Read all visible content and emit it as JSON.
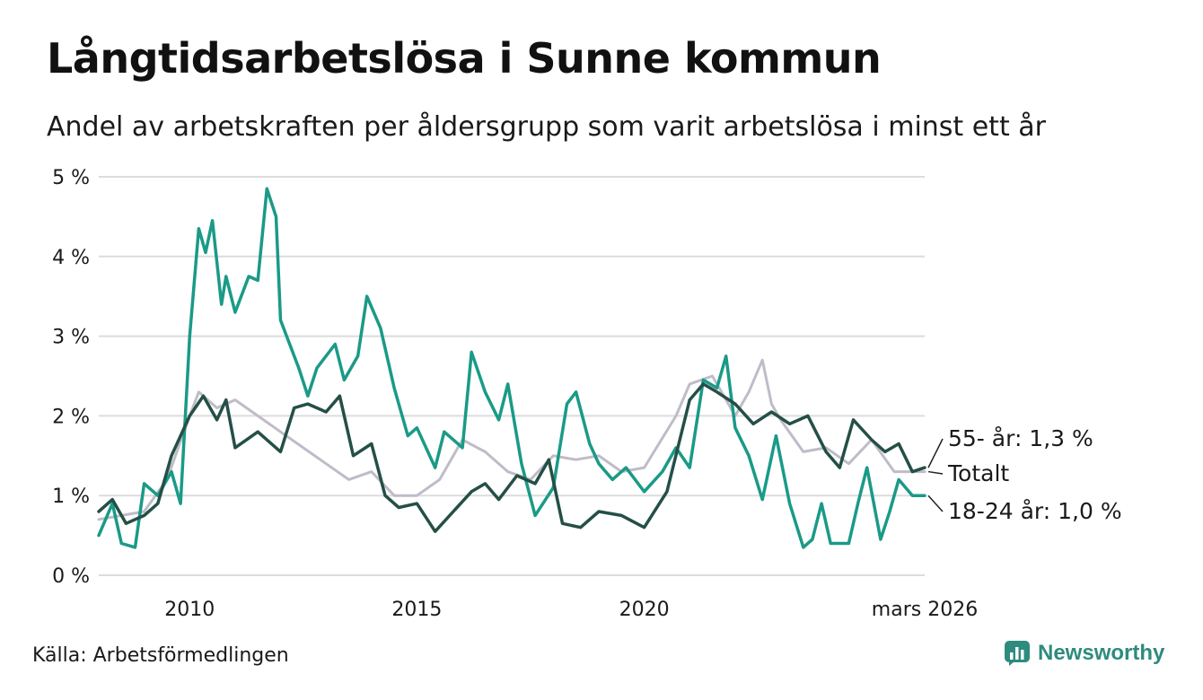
{
  "title": "Långtidsarbetslösa i Sunne kommun",
  "subtitle": "Andel av arbetskraften per åldersgrupp som varit arbetslösa i minst ett år",
  "source": "Källa: Arbetsförmedlingen",
  "brand": "Newsworthy",
  "colors": {
    "age55": "#244f47",
    "total": "#bfbcc8",
    "youth": "#1a9a87",
    "grid": "#dcdcdc",
    "brand": "#2e8b7e"
  },
  "chart_data": {
    "type": "line",
    "title": "Långtidsarbetslösa i Sunne kommun",
    "xlabel": "",
    "ylabel": "",
    "ylim": [
      0,
      5
    ],
    "xlim": [
      2008.0,
      2026.17
    ],
    "y_ticks": [
      {
        "value": 0,
        "label": "0 %"
      },
      {
        "value": 1,
        "label": "1 %"
      },
      {
        "value": 2,
        "label": "2 %"
      },
      {
        "value": 3,
        "label": "3 %"
      },
      {
        "value": 4,
        "label": "4 %"
      },
      {
        "value": 5,
        "label": "5 %"
      }
    ],
    "x_ticks": [
      {
        "value": 2010,
        "label": "2010"
      },
      {
        "value": 2015,
        "label": "2015"
      },
      {
        "value": 2020,
        "label": "2020"
      },
      {
        "value": 2026.17,
        "label": "mars 2026"
      }
    ],
    "series": [
      {
        "name": "Totalt",
        "end_label": "Totalt",
        "color": "#bfbcc8",
        "points": [
          [
            2008.0,
            0.7
          ],
          [
            2008.5,
            0.75
          ],
          [
            2009.0,
            0.8
          ],
          [
            2009.5,
            1.2
          ],
          [
            2010.0,
            2.0
          ],
          [
            2010.2,
            2.3
          ],
          [
            2010.6,
            2.1
          ],
          [
            2011.0,
            2.2
          ],
          [
            2011.5,
            2.0
          ],
          [
            2012.0,
            1.8
          ],
          [
            2012.5,
            1.6
          ],
          [
            2013.0,
            1.4
          ],
          [
            2013.5,
            1.2
          ],
          [
            2014.0,
            1.3
          ],
          [
            2014.5,
            1.0
          ],
          [
            2015.0,
            1.0
          ],
          [
            2015.5,
            1.2
          ],
          [
            2016.0,
            1.7
          ],
          [
            2016.5,
            1.55
          ],
          [
            2017.0,
            1.3
          ],
          [
            2017.5,
            1.2
          ],
          [
            2018.0,
            1.5
          ],
          [
            2018.5,
            1.45
          ],
          [
            2019.0,
            1.5
          ],
          [
            2019.5,
            1.3
          ],
          [
            2020.0,
            1.35
          ],
          [
            2020.7,
            2.0
          ],
          [
            2021.0,
            2.4
          ],
          [
            2021.5,
            2.5
          ],
          [
            2022.0,
            2.0
          ],
          [
            2022.3,
            2.3
          ],
          [
            2022.6,
            2.7
          ],
          [
            2022.8,
            2.15
          ],
          [
            2023.0,
            1.95
          ],
          [
            2023.5,
            1.55
          ],
          [
            2024.0,
            1.6
          ],
          [
            2024.5,
            1.4
          ],
          [
            2025.0,
            1.7
          ],
          [
            2025.5,
            1.3
          ],
          [
            2025.9,
            1.3
          ],
          [
            2026.17,
            1.3
          ]
        ]
      },
      {
        "name": "55- år",
        "end_label": "55- år: 1,3 %",
        "color": "#244f47",
        "points": [
          [
            2008.0,
            0.8
          ],
          [
            2008.3,
            0.95
          ],
          [
            2008.6,
            0.65
          ],
          [
            2009.0,
            0.75
          ],
          [
            2009.3,
            0.9
          ],
          [
            2009.6,
            1.5
          ],
          [
            2010.0,
            2.0
          ],
          [
            2010.3,
            2.25
          ],
          [
            2010.6,
            1.95
          ],
          [
            2010.8,
            2.2
          ],
          [
            2011.0,
            1.6
          ],
          [
            2011.5,
            1.8
          ],
          [
            2012.0,
            1.55
          ],
          [
            2012.3,
            2.1
          ],
          [
            2012.6,
            2.15
          ],
          [
            2013.0,
            2.05
          ],
          [
            2013.3,
            2.25
          ],
          [
            2013.6,
            1.5
          ],
          [
            2014.0,
            1.65
          ],
          [
            2014.3,
            1.0
          ],
          [
            2014.6,
            0.85
          ],
          [
            2015.0,
            0.9
          ],
          [
            2015.4,
            0.55
          ],
          [
            2015.8,
            0.8
          ],
          [
            2016.2,
            1.05
          ],
          [
            2016.5,
            1.15
          ],
          [
            2016.8,
            0.95
          ],
          [
            2017.2,
            1.25
          ],
          [
            2017.6,
            1.15
          ],
          [
            2017.9,
            1.45
          ],
          [
            2018.2,
            0.65
          ],
          [
            2018.6,
            0.6
          ],
          [
            2019.0,
            0.8
          ],
          [
            2019.5,
            0.75
          ],
          [
            2020.0,
            0.6
          ],
          [
            2020.5,
            1.05
          ],
          [
            2021.0,
            2.2
          ],
          [
            2021.3,
            2.4
          ],
          [
            2021.6,
            2.3
          ],
          [
            2022.0,
            2.15
          ],
          [
            2022.4,
            1.9
          ],
          [
            2022.8,
            2.05
          ],
          [
            2023.2,
            1.9
          ],
          [
            2023.6,
            2.0
          ],
          [
            2024.0,
            1.55
          ],
          [
            2024.3,
            1.35
          ],
          [
            2024.6,
            1.95
          ],
          [
            2025.0,
            1.7
          ],
          [
            2025.3,
            1.55
          ],
          [
            2025.6,
            1.65
          ],
          [
            2025.9,
            1.3
          ],
          [
            2026.17,
            1.35
          ]
        ]
      },
      {
        "name": "18-24 år",
        "end_label": "18-24 år: 1,0 %",
        "color": "#1a9a87",
        "points": [
          [
            2008.0,
            0.5
          ],
          [
            2008.3,
            0.9
          ],
          [
            2008.5,
            0.4
          ],
          [
            2008.8,
            0.35
          ],
          [
            2009.0,
            1.15
          ],
          [
            2009.3,
            1.0
          ],
          [
            2009.6,
            1.3
          ],
          [
            2009.8,
            0.9
          ],
          [
            2010.0,
            3.0
          ],
          [
            2010.2,
            4.35
          ],
          [
            2010.35,
            4.05
          ],
          [
            2010.5,
            4.45
          ],
          [
            2010.7,
            3.4
          ],
          [
            2010.8,
            3.75
          ],
          [
            2011.0,
            3.3
          ],
          [
            2011.3,
            3.75
          ],
          [
            2011.5,
            3.7
          ],
          [
            2011.7,
            4.85
          ],
          [
            2011.9,
            4.5
          ],
          [
            2012.0,
            3.2
          ],
          [
            2012.4,
            2.6
          ],
          [
            2012.6,
            2.25
          ],
          [
            2012.8,
            2.6
          ],
          [
            2013.2,
            2.9
          ],
          [
            2013.4,
            2.45
          ],
          [
            2013.7,
            2.75
          ],
          [
            2013.9,
            3.5
          ],
          [
            2014.2,
            3.1
          ],
          [
            2014.5,
            2.35
          ],
          [
            2014.8,
            1.75
          ],
          [
            2015.0,
            1.85
          ],
          [
            2015.4,
            1.35
          ],
          [
            2015.6,
            1.8
          ],
          [
            2016.0,
            1.6
          ],
          [
            2016.2,
            2.8
          ],
          [
            2016.5,
            2.3
          ],
          [
            2016.8,
            1.95
          ],
          [
            2017.0,
            2.4
          ],
          [
            2017.3,
            1.4
          ],
          [
            2017.6,
            0.75
          ],
          [
            2018.0,
            1.1
          ],
          [
            2018.3,
            2.15
          ],
          [
            2018.5,
            2.3
          ],
          [
            2018.8,
            1.65
          ],
          [
            2019.0,
            1.4
          ],
          [
            2019.3,
            1.2
          ],
          [
            2019.6,
            1.35
          ],
          [
            2020.0,
            1.05
          ],
          [
            2020.4,
            1.3
          ],
          [
            2020.7,
            1.6
          ],
          [
            2021.0,
            1.35
          ],
          [
            2021.3,
            2.45
          ],
          [
            2021.6,
            2.35
          ],
          [
            2021.8,
            2.75
          ],
          [
            2022.0,
            1.85
          ],
          [
            2022.3,
            1.5
          ],
          [
            2022.6,
            0.95
          ],
          [
            2022.9,
            1.75
          ],
          [
            2023.2,
            0.9
          ],
          [
            2023.5,
            0.35
          ],
          [
            2023.7,
            0.45
          ],
          [
            2023.9,
            0.9
          ],
          [
            2024.1,
            0.4
          ],
          [
            2024.5,
            0.4
          ],
          [
            2024.7,
            0.9
          ],
          [
            2024.9,
            1.35
          ],
          [
            2025.2,
            0.45
          ],
          [
            2025.4,
            0.8
          ],
          [
            2025.6,
            1.2
          ],
          [
            2025.9,
            1.0
          ],
          [
            2026.17,
            1.0
          ]
        ]
      }
    ]
  }
}
